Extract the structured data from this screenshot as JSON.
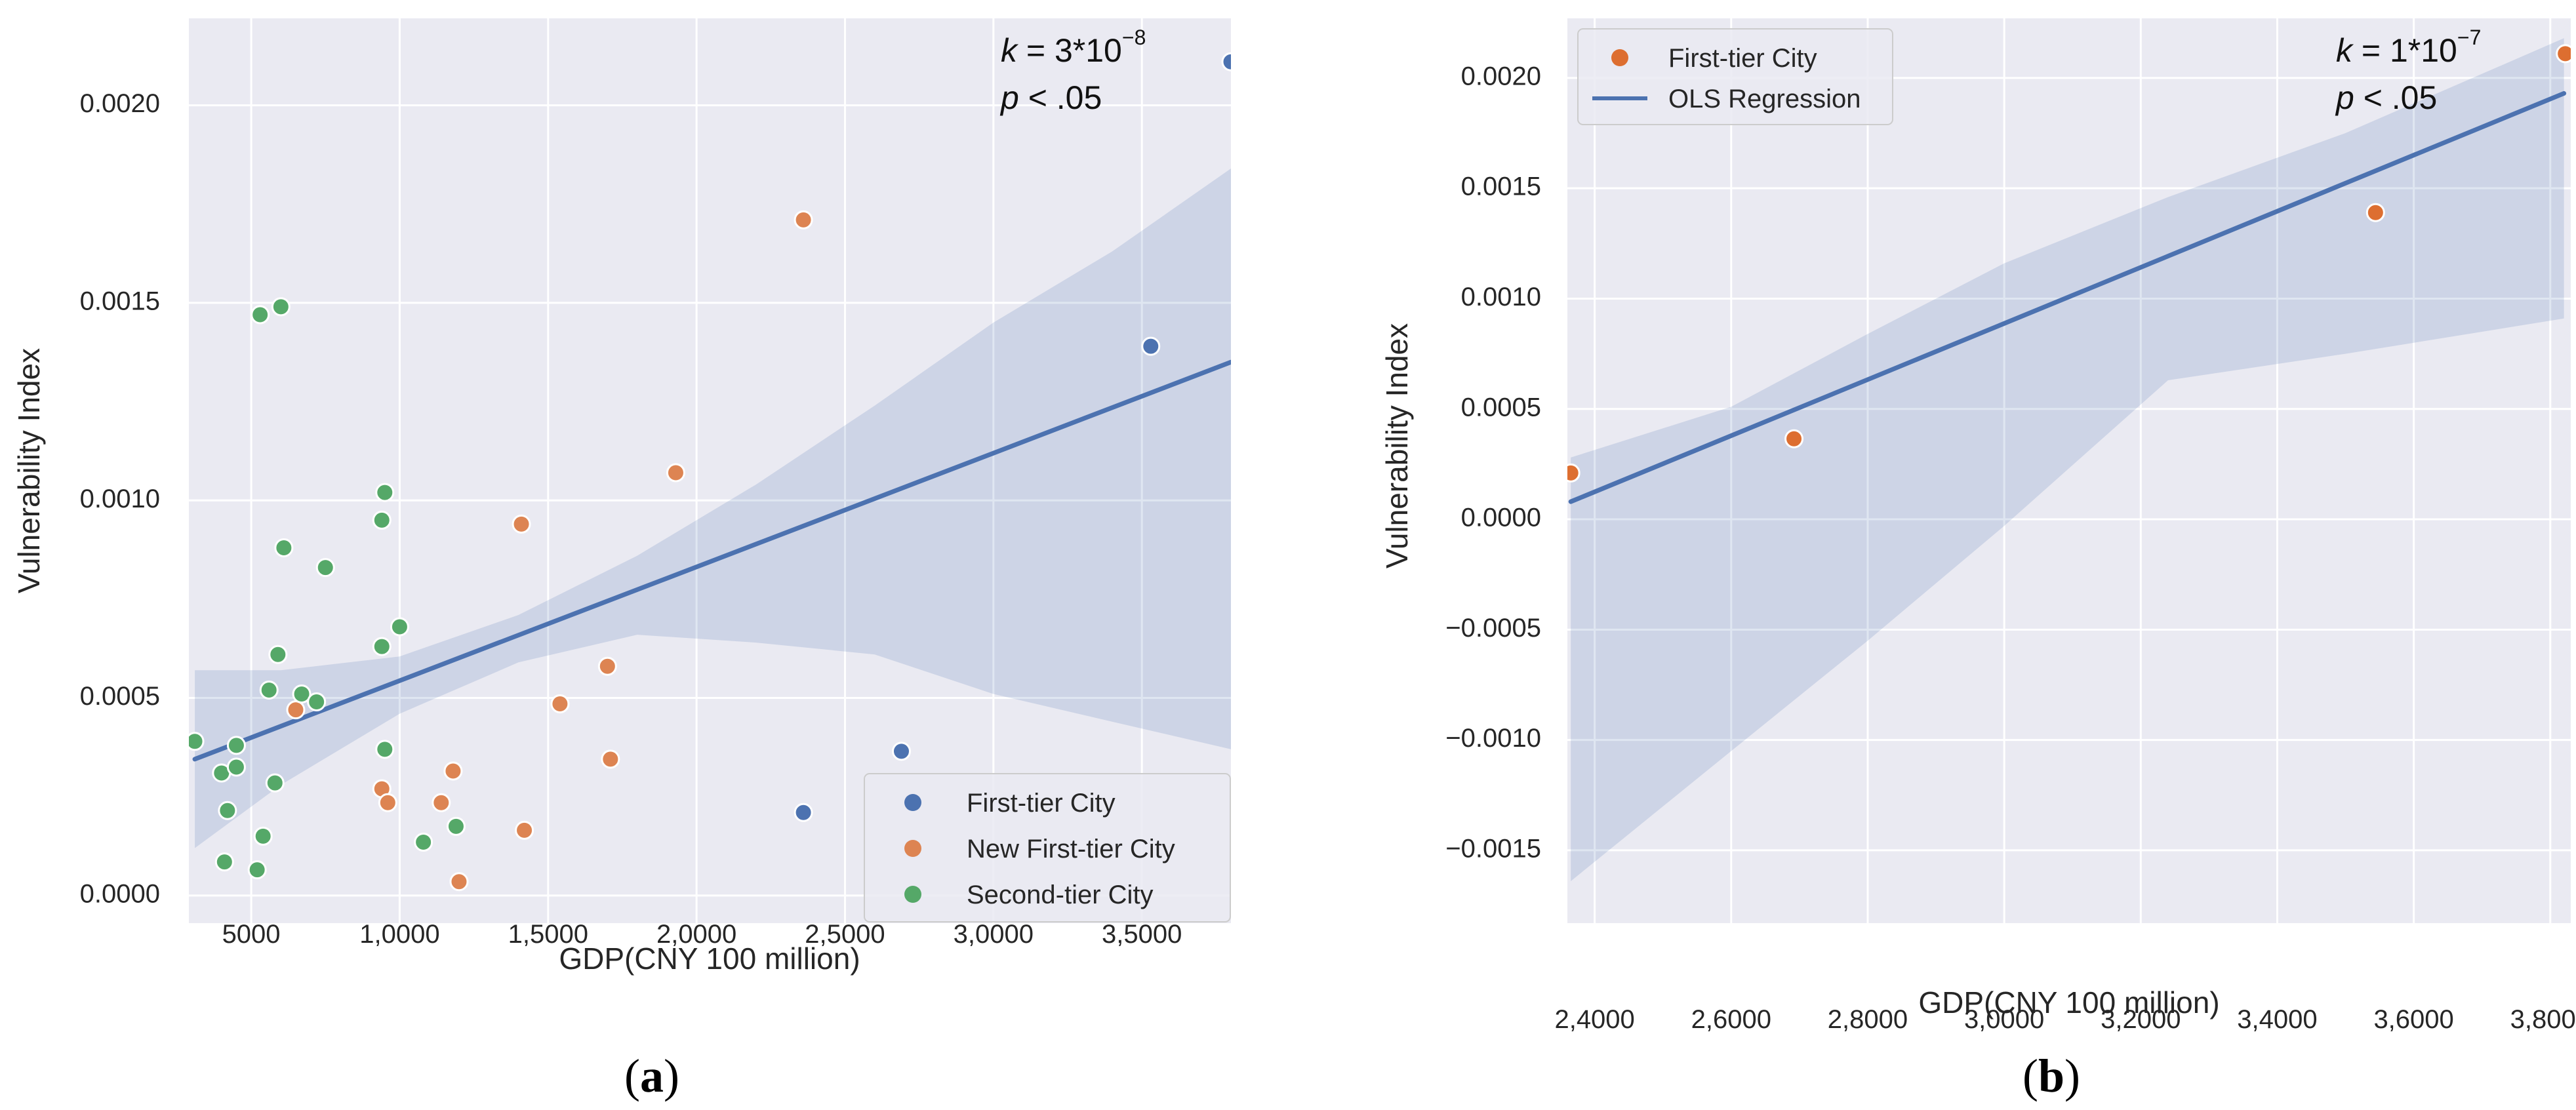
{
  "chart_data": [
    {
      "id": "a",
      "type": "scatter",
      "subfigure_label": "(a)",
      "xlabel": "GDP(CNY 100 million)",
      "ylabel": "Vulnerability Index",
      "xlim": [
        2900,
        38000
      ],
      "ylim": [
        -7e-05,
        0.00222
      ],
      "xticks": [
        5000,
        10000,
        15000,
        20000,
        25000,
        30000,
        35000
      ],
      "xtick_labels": [
        "5000",
        "1,0000",
        "1,5000",
        "2,0000",
        "2,5000",
        "3,0000",
        "3,5000"
      ],
      "yticks": [
        0.0,
        0.0005,
        0.001,
        0.0015,
        0.002
      ],
      "ytick_labels": [
        "0.0000",
        "0.0005",
        "0.0010",
        "0.0015",
        "0.0020"
      ],
      "grid": true,
      "annotation": {
        "k_label": "k",
        "k_value": " = 3*10",
        "k_exp": "−8",
        "p_label": "p",
        "p_value": " < .05"
      },
      "legend": {
        "position": "lower-right",
        "entries": [
          {
            "label": "First-tier City",
            "color": "#4c72b0",
            "kind": "marker"
          },
          {
            "label": "New First-tier City",
            "color": "#dd8452",
            "kind": "marker"
          },
          {
            "label": "Second-tier City",
            "color": "#55a868",
            "kind": "marker"
          }
        ]
      },
      "regression": {
        "x": [
          3100,
          38000
        ],
        "y": [
          0.000345,
          0.00135
        ],
        "color": "#4c72b0"
      },
      "confidence_band": {
        "x": [
          3100,
          6000,
          10000,
          14000,
          18000,
          22000,
          26000,
          30000,
          34000,
          38000
        ],
        "upper": [
          0.00057,
          0.00057,
          0.000605,
          0.00071,
          0.00086,
          0.00104,
          0.00124,
          0.00145,
          0.00163,
          0.00184
        ],
        "lower": [
          0.00012,
          0.00028,
          0.00046,
          0.00059,
          0.00066,
          0.00064,
          0.00061,
          0.00051,
          0.00044,
          0.00037
        ]
      },
      "series": [
        {
          "name": "First-tier City",
          "color": "#4c72b0",
          "points": [
            [
              38000,
              0.00211
            ],
            [
              35300,
              0.00139
            ],
            [
              26900,
              0.000365
            ],
            [
              23600,
              0.00021
            ]
          ]
        },
        {
          "name": "New First-tier City",
          "color": "#dd8452",
          "points": [
            [
              23600,
              0.00171
            ],
            [
              19300,
              0.00107
            ],
            [
              14100,
              0.00094
            ],
            [
              17000,
              0.00058
            ],
            [
              15400,
              0.000485
            ],
            [
              17100,
              0.000345
            ],
            [
              6500,
              0.00047
            ],
            [
              11800,
              0.000315
            ],
            [
              9400,
              0.00027
            ],
            [
              9600,
              0.000235
            ],
            [
              11400,
              0.000235
            ],
            [
              14200,
              0.000165
            ],
            [
              12000,
              3.5e-05
            ]
          ]
        },
        {
          "name": "Second-tier City",
          "color": "#55a868",
          "points": [
            [
              5300,
              0.00147
            ],
            [
              6000,
              0.00149
            ],
            [
              9500,
              0.00102
            ],
            [
              9400,
              0.00095
            ],
            [
              6100,
              0.00088
            ],
            [
              7500,
              0.00083
            ],
            [
              10000,
              0.00068
            ],
            [
              9400,
              0.00063
            ],
            [
              5900,
              0.00061
            ],
            [
              5600,
              0.00052
            ],
            [
              6700,
              0.00051
            ],
            [
              7200,
              0.00049
            ],
            [
              3100,
              0.00039
            ],
            [
              4500,
              0.00038
            ],
            [
              9500,
              0.00037
            ],
            [
              4000,
              0.00031
            ],
            [
              4500,
              0.000325
            ],
            [
              5800,
              0.000285
            ],
            [
              4200,
              0.000215
            ],
            [
              11900,
              0.000175
            ],
            [
              10800,
              0.000135
            ],
            [
              5400,
              0.00015
            ],
            [
              4100,
              8.5e-05
            ],
            [
              5200,
              6.5e-05
            ]
          ]
        }
      ]
    },
    {
      "id": "b",
      "type": "scatter",
      "subfigure_label": "(b)",
      "xlabel": "GDP(CNY 100 million)",
      "ylabel": "Vulnerability Index",
      "xlim": [
        23600,
        38300
      ],
      "ylim": [
        -0.00183,
        0.00227
      ],
      "xticks": [
        24000,
        26000,
        28000,
        30000,
        32000,
        34000,
        36000,
        38000
      ],
      "xtick_labels": [
        "2,4000",
        "2,6000",
        "2,8000",
        "3,0000",
        "3,2000",
        "3,4000",
        "3,6000",
        "3,8000"
      ],
      "yticks": [
        -0.0015,
        -0.001,
        -0.0005,
        0.0,
        0.0005,
        0.001,
        0.0015,
        0.002
      ],
      "ytick_labels": [
        "−0.0015",
        "−0.0010",
        "−0.0005",
        "0.0000",
        "0.0005",
        "0.0010",
        "0.0015",
        "0.0020"
      ],
      "grid": true,
      "annotation": {
        "k_label": "k",
        "k_value": " = 1*10",
        "k_exp": "−7",
        "p_label": "p",
        "p_value": " < .05"
      },
      "legend": {
        "position": "top-left",
        "entries": [
          {
            "label": "First-tier City",
            "color": "#dd6e30",
            "kind": "marker"
          },
          {
            "label": "OLS Regression",
            "color": "#4c72b0",
            "kind": "line"
          }
        ]
      },
      "regression": {
        "x": [
          23650,
          38200
        ],
        "y": [
          8e-05,
          0.00193
        ],
        "color": "#4c72b0"
      },
      "confidence_band": {
        "x": [
          23650,
          26000,
          28000,
          30000,
          32400,
          35000,
          38200
        ],
        "upper": [
          0.00028,
          0.00051,
          0.00084,
          0.00116,
          0.00146,
          0.00175,
          0.00218
        ],
        "lower": [
          -0.00164,
          -0.00105,
          -0.00055,
          -3e-05,
          0.00063,
          0.00075,
          0.00091
        ]
      },
      "series": [
        {
          "name": "First-tier City",
          "color": "#dd6e30",
          "points": [
            [
              23650,
              0.00021
            ],
            [
              26920,
              0.000365
            ],
            [
              35440,
              0.00139
            ],
            [
              38220,
              0.00211
            ]
          ]
        }
      ]
    }
  ]
}
